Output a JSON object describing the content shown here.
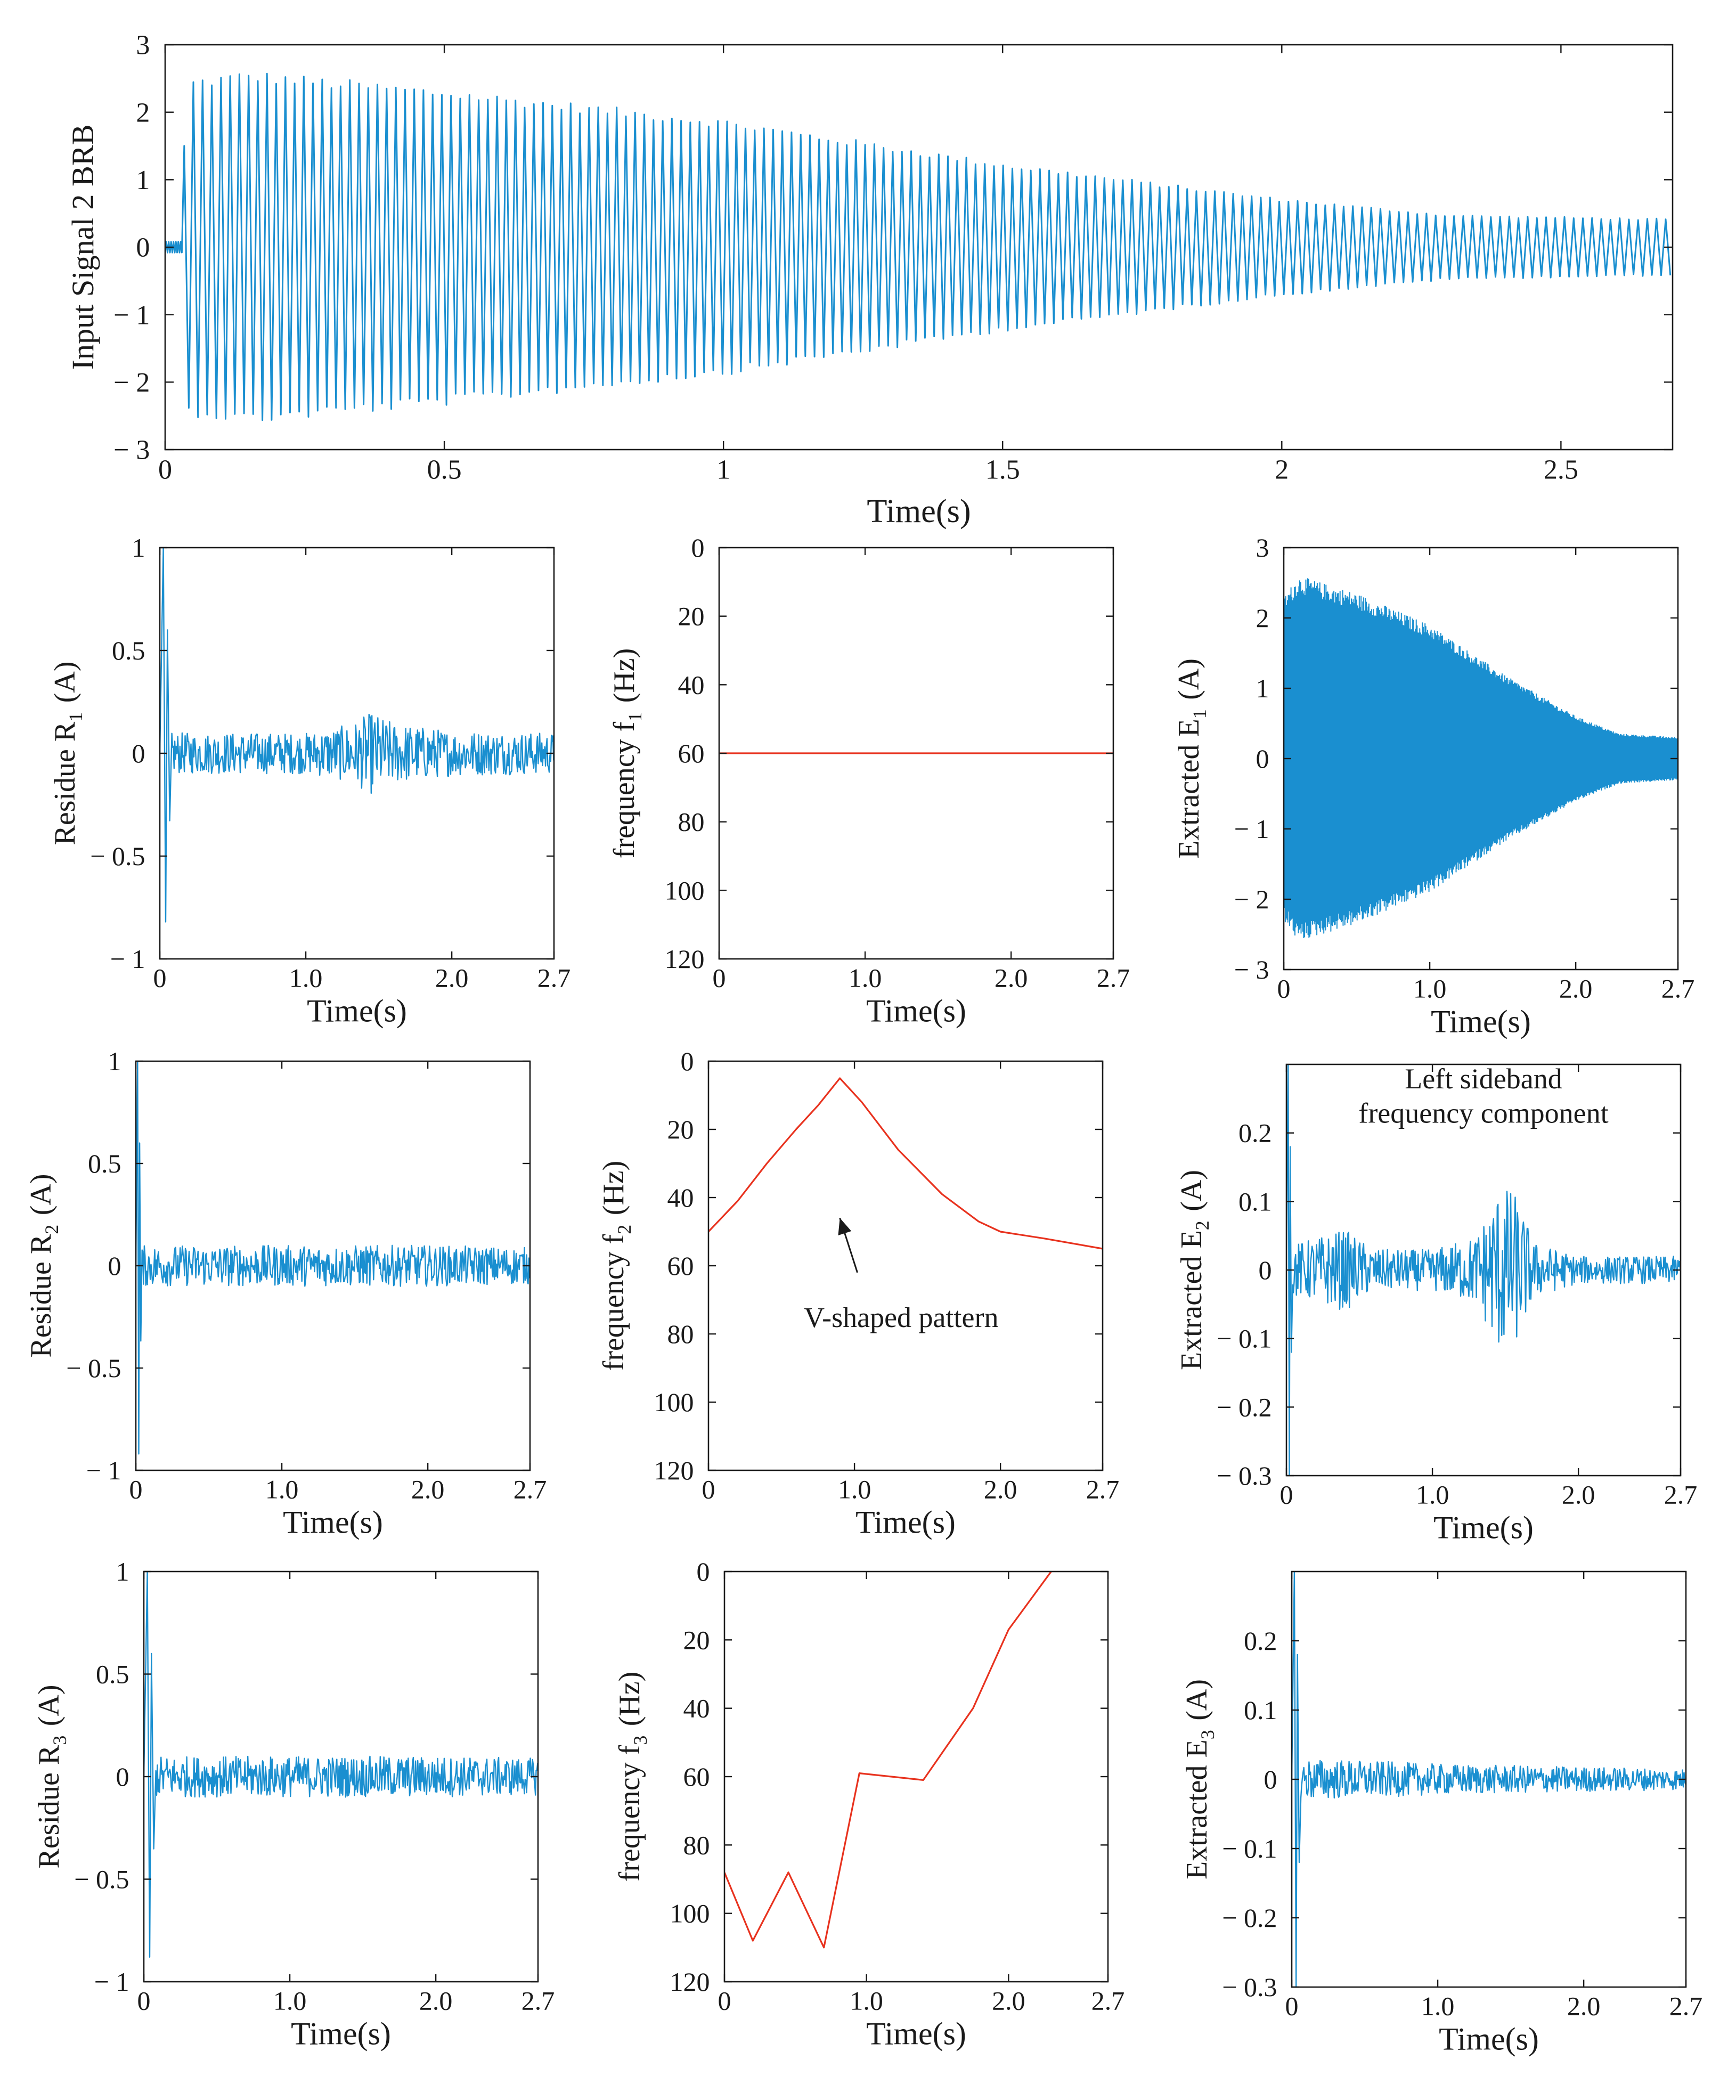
{
  "colors": {
    "signal": "#1a8fd0",
    "frequency": "#e8321e",
    "axis": "#1a1a1a"
  },
  "chart_data": [
    {
      "id": "top",
      "type": "line",
      "title": "",
      "ylabel": "Input Signal 2 BRB",
      "xlabel": "Time(s)",
      "xlim": [
        0,
        2.7
      ],
      "ylim": [
        -3,
        3
      ],
      "xticks": [
        0,
        0.5,
        1,
        1.5,
        2,
        2.5
      ],
      "xtick_labels": [
        "0",
        "0.5",
        "1",
        "1.5",
        "2",
        "2.5"
      ],
      "yticks": [
        3,
        2,
        1,
        0,
        -1,
        -2,
        -3
      ],
      "ytick_labels": [
        "3",
        "2",
        "1",
        "0",
        "− 1",
        "− 2",
        "− 3"
      ],
      "series": [
        {
          "name": "input signal",
          "kind": "oscillation",
          "onset": 0.03,
          "cycles": 162,
          "envelope": {
            "t": [
              0,
              0.025,
              0.04,
              0.15,
              0.5,
              1.0,
              1.5,
              2.0,
              2.3,
              2.7
            ],
            "a": [
              0.05,
              0.05,
              2.5,
              2.62,
              2.35,
              1.9,
              1.25,
              0.72,
              0.48,
              0.42
            ]
          }
        }
      ]
    },
    {
      "id": "r1",
      "type": "line",
      "ylabel": "Residue R",
      "ylabel_sub": "1",
      "ylabel_unit": "(A)",
      "xlabel": "Time(s)",
      "xlim": [
        0,
        2.7
      ],
      "ylim": [
        -1,
        1
      ],
      "xticks": [
        0,
        1,
        2,
        2.7
      ],
      "xtick_labels": [
        "0",
        "1.0",
        "2.0",
        "2.7"
      ],
      "yticks": [
        1,
        0.5,
        0,
        -0.5,
        -1
      ],
      "ytick_labels": [
        "1",
        "0.5",
        "0",
        "− 0.5",
        "− 1"
      ],
      "series": [
        {
          "name": "residue",
          "kind": "noise",
          "spike_t": 0.04,
          "spike_max": 1.0,
          "spike_min": -0.82,
          "envelope": {
            "t": [
              0.08,
              1.0,
              1.3,
              1.45,
              1.6,
              2.0,
              2.7
            ],
            "a": [
              0.1,
              0.1,
              0.14,
              0.2,
              0.15,
              0.11,
              0.1
            ]
          }
        }
      ]
    },
    {
      "id": "f1",
      "type": "line",
      "ylabel": "frequency f",
      "ylabel_sub": "1",
      "ylabel_unit": "(Hz)",
      "xlabel": "Time(s)",
      "xlim": [
        0,
        2.7
      ],
      "ylim": [
        0,
        120
      ],
      "y_inverted": true,
      "xticks": [
        0,
        1,
        2,
        2.7
      ],
      "xtick_labels": [
        "0",
        "1.0",
        "2.0",
        "2.7"
      ],
      "yticks": [
        0,
        20,
        40,
        60,
        80,
        100,
        120
      ],
      "ytick_labels": [
        "0",
        "20",
        "40",
        "60",
        "80",
        "100",
        "120"
      ],
      "series": [
        {
          "name": "frequency",
          "x": [
            0,
            2.7
          ],
          "y": [
            60,
            60
          ]
        }
      ]
    },
    {
      "id": "e1",
      "type": "line",
      "ylabel": "Extracted E",
      "ylabel_sub": "1",
      "ylabel_unit": "(A)",
      "xlabel": "Time(s)",
      "xlim": [
        0,
        2.7
      ],
      "ylim": [
        -3,
        3
      ],
      "xticks": [
        0,
        1,
        2,
        2.7
      ],
      "xtick_labels": [
        "0",
        "1.0",
        "2.0",
        "2.7"
      ],
      "yticks": [
        3,
        2,
        1,
        0,
        -1,
        -2,
        -3
      ],
      "ytick_labels": [
        "3",
        "2",
        "1",
        "0",
        "− 1",
        "− 2",
        "− 3"
      ],
      "series": [
        {
          "name": "extracted",
          "kind": "dense",
          "envelope": {
            "t": [
              0,
              0.1,
              0.5,
              1.0,
              1.5,
              2.0,
              2.3,
              2.7
            ],
            "a": [
              2.3,
              2.6,
              2.35,
              1.9,
              1.2,
              0.6,
              0.35,
              0.3
            ]
          }
        }
      ]
    },
    {
      "id": "r2",
      "type": "line",
      "ylabel": "Residue R",
      "ylabel_sub": "2",
      "ylabel_unit": "(A)",
      "xlabel": "Time(s)",
      "xlim": [
        0,
        2.7
      ],
      "ylim": [
        -1,
        1
      ],
      "xticks": [
        0,
        1,
        2,
        2.7
      ],
      "xtick_labels": [
        "0",
        "1.0",
        "2.0",
        "2.7"
      ],
      "yticks": [
        1,
        0.5,
        0,
        -0.5,
        -1
      ],
      "ytick_labels": [
        "1",
        "0.5",
        "0",
        "− 0.5",
        "− 1"
      ],
      "series": [
        {
          "name": "residue",
          "kind": "noise",
          "spike_t": 0.02,
          "spike_max": 1.0,
          "spike_min": -0.92,
          "envelope": {
            "t": [
              0.06,
              1.0,
              2.0,
              2.7
            ],
            "a": [
              0.1,
              0.1,
              0.1,
              0.09
            ]
          }
        }
      ]
    },
    {
      "id": "f2",
      "type": "line",
      "ylabel": "frequency f",
      "ylabel_sub": "2",
      "ylabel_unit": "(Hz)",
      "xlabel": "Time(s)",
      "xlim": [
        0,
        2.7
      ],
      "ylim": [
        0,
        120
      ],
      "y_inverted": true,
      "xticks": [
        0,
        1,
        2,
        2.7
      ],
      "xtick_labels": [
        "0",
        "1.0",
        "2.0",
        "2.7"
      ],
      "yticks": [
        0,
        20,
        40,
        60,
        80,
        100,
        120
      ],
      "ytick_labels": [
        "0",
        "20",
        "40",
        "60",
        "80",
        "100",
        "120"
      ],
      "annotation": {
        "text": "V-shaped pattern",
        "x": 1.32,
        "y": 78,
        "arrow_from": [
          1.02,
          62
        ],
        "arrow_to": [
          0.9,
          46
        ]
      },
      "series": [
        {
          "name": "frequency",
          "x": [
            0,
            0.2,
            0.4,
            0.6,
            0.75,
            0.9,
            1.05,
            1.3,
            1.6,
            1.85,
            2.0,
            2.3,
            2.7
          ],
          "y": [
            50,
            41,
            30,
            20,
            13,
            5,
            12,
            26,
            39,
            47,
            50,
            52,
            55
          ]
        }
      ]
    },
    {
      "id": "e2",
      "type": "line",
      "ylabel": "Extracted E",
      "ylabel_sub": "2",
      "ylabel_unit": "(A)",
      "xlabel": "Time(s)",
      "xlim": [
        0,
        2.7
      ],
      "ylim": [
        -0.3,
        0.3
      ],
      "xticks": [
        0,
        1,
        2,
        2.7
      ],
      "xtick_labels": [
        "0",
        "1.0",
        "2.0",
        "2.7"
      ],
      "yticks": [
        0.2,
        0.1,
        0,
        -0.1,
        -0.2,
        -0.3
      ],
      "ytick_labels": [
        "0.2",
        "0.1",
        "0",
        "− 0.1",
        "− 0.2",
        "− 0.3"
      ],
      "annotation": {
        "text_line1": "Left sideband",
        "text_line2": "frequency component",
        "x": 1.35,
        "y1": 0.265,
        "y2": 0.215
      },
      "series": [
        {
          "name": "extracted",
          "kind": "noise",
          "spike_t": 0.02,
          "spike_max": 0.3,
          "spike_min": -0.3,
          "envelope": {
            "t": [
              0.08,
              0.4,
              0.6,
              1.0,
              1.3,
              1.45,
              1.55,
              1.7,
              2.0,
              2.7
            ],
            "a": [
              0.04,
              0.06,
              0.03,
              0.03,
              0.05,
              0.12,
              0.12,
              0.04,
              0.02,
              0.02
            ]
          }
        }
      ]
    },
    {
      "id": "r3",
      "type": "line",
      "ylabel": "Residue R",
      "ylabel_sub": "3",
      "ylabel_unit": "(A)",
      "xlabel": "Time(s)",
      "xlim": [
        0,
        2.7
      ],
      "ylim": [
        -1,
        1
      ],
      "xticks": [
        0,
        1,
        2,
        2.7
      ],
      "xtick_labels": [
        "0",
        "1.0",
        "2.0",
        "2.7"
      ],
      "yticks": [
        1,
        0.5,
        0,
        -0.5,
        -1
      ],
      "ytick_labels": [
        "1",
        "0.5",
        "0",
        "− 0.5",
        "− 1"
      ],
      "series": [
        {
          "name": "residue",
          "kind": "noise",
          "spike_t": 0.04,
          "spike_max": 1.0,
          "spike_min": -0.88,
          "envelope": {
            "t": [
              0.08,
              1.0,
              2.0,
              2.7
            ],
            "a": [
              0.1,
              0.1,
              0.1,
              0.09
            ]
          }
        }
      ]
    },
    {
      "id": "f3",
      "type": "line",
      "ylabel": "frequency f",
      "ylabel_sub": "3",
      "ylabel_unit": "(Hz)",
      "xlabel": "Time(s)",
      "xlim": [
        0,
        2.7
      ],
      "ylim": [
        0,
        120
      ],
      "y_inverted": true,
      "xticks": [
        0,
        1,
        2,
        2.7
      ],
      "xtick_labels": [
        "0",
        "1.0",
        "2.0",
        "2.7"
      ],
      "yticks": [
        0,
        20,
        40,
        60,
        80,
        100,
        120
      ],
      "ytick_labels": [
        "0",
        "20",
        "40",
        "60",
        "80",
        "100",
        "120"
      ],
      "series": [
        {
          "name": "frequency",
          "x": [
            0,
            0.2,
            0.45,
            0.7,
            0.95,
            1.4,
            1.75,
            2.0,
            2.3
          ],
          "y": [
            88,
            108,
            88,
            110,
            59,
            61,
            40,
            17,
            0
          ]
        }
      ]
    },
    {
      "id": "e3",
      "type": "line",
      "ylabel": "Extracted E",
      "ylabel_sub": "3",
      "ylabel_unit": "(A)",
      "xlabel": "Time(s)",
      "xlim": [
        0,
        2.7
      ],
      "ylim": [
        -0.3,
        0.3
      ],
      "xticks": [
        0,
        1,
        2,
        2.7
      ],
      "xtick_labels": [
        "0",
        "1.0",
        "2.0",
        "2.7"
      ],
      "yticks": [
        0.2,
        0.1,
        0,
        -0.1,
        -0.2,
        -0.3
      ],
      "ytick_labels": [
        "0.2",
        "0.1",
        "0",
        "− 0.1",
        "− 0.2",
        "− 0.3"
      ],
      "series": [
        {
          "name": "extracted",
          "kind": "noise",
          "spike_t": 0.03,
          "spike_max": 0.3,
          "spike_min": -0.3,
          "envelope": {
            "t": [
              0.08,
              0.4,
              1.0,
              2.0,
              2.7
            ],
            "a": [
              0.03,
              0.028,
              0.022,
              0.018,
              0.015
            ]
          }
        }
      ]
    }
  ]
}
